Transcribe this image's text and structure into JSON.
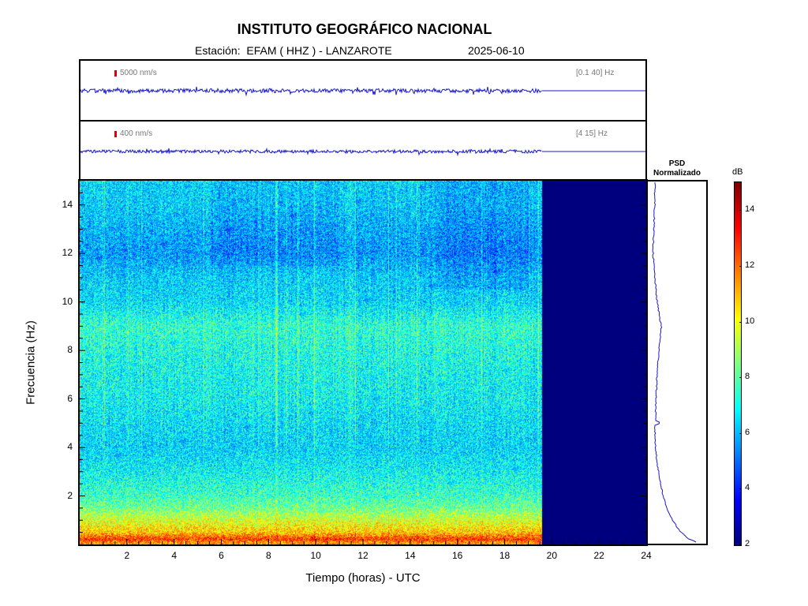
{
  "header": {
    "title": "INSTITUTO GEOGRÁFICO NACIONAL",
    "station": "Estación:  EFAM ( HHZ ) - LANZAROTE",
    "date": "2025-06-10"
  },
  "trace_top": {
    "scale": "5000 nm/s",
    "band": "[0.1 40] Hz"
  },
  "trace_bottom": {
    "scale": "400 nm/s",
    "band": "[4 15] Hz"
  },
  "psd": {
    "title_line1": "PSD",
    "title_line2": "Normalizado"
  },
  "colorbar": {
    "unit": "dB",
    "ticks": [
      2,
      4,
      6,
      8,
      10,
      12,
      14
    ],
    "range": [
      2,
      15
    ],
    "colormap": "jet",
    "no_data_color": "#00007f"
  },
  "axes": {
    "xlabel": "Tiempo (horas) - UTC",
    "ylabel": "Frecuencia  (Hz)"
  },
  "chart_data": {
    "type": "heatmap",
    "title": "INSTITUTO GEOGRÁFICO NACIONAL",
    "xlabel": "Tiempo (horas) - UTC",
    "ylabel": "Frecuencia  (Hz)",
    "xlim": [
      0,
      24
    ],
    "ylim": [
      0,
      15
    ],
    "xticks": [
      2,
      4,
      6,
      8,
      10,
      12,
      14,
      16,
      18,
      20,
      22,
      24
    ],
    "yticks": [
      2,
      4,
      6,
      8,
      10,
      12,
      14
    ],
    "data_end_hour": 19.6,
    "color_range_db": [
      2,
      15
    ],
    "freq_profile": [
      {
        "f": 0.1,
        "db": 11.5
      },
      {
        "f": 0.2,
        "db": 12.8
      },
      {
        "f": 0.5,
        "db": 10.8
      },
      {
        "f": 1.0,
        "db": 9.6
      },
      {
        "f": 1.5,
        "db": 8.3
      },
      {
        "f": 2.0,
        "db": 7.6
      },
      {
        "f": 3.0,
        "db": 6.9
      },
      {
        "f": 4.0,
        "db": 6.4
      },
      {
        "f": 5.0,
        "db": 6.6
      },
      {
        "f": 6.0,
        "db": 6.9
      },
      {
        "f": 7.0,
        "db": 7.0
      },
      {
        "f": 8.0,
        "db": 7.2
      },
      {
        "f": 9.0,
        "db": 7.5
      },
      {
        "f": 10.0,
        "db": 6.5
      },
      {
        "f": 11.0,
        "db": 6.3
      },
      {
        "f": 12.0,
        "db": 5.6
      },
      {
        "f": 13.0,
        "db": 5.9
      },
      {
        "f": 14.0,
        "db": 6.3
      },
      {
        "f": 15.0,
        "db": 6.4
      }
    ],
    "psd_profile": [
      {
        "f": 0.05,
        "v": 0.85
      },
      {
        "f": 0.2,
        "v": 0.7
      },
      {
        "f": 0.5,
        "v": 0.55
      },
      {
        "f": 1.0,
        "v": 0.42
      },
      {
        "f": 1.5,
        "v": 0.32
      },
      {
        "f": 2.0,
        "v": 0.26
      },
      {
        "f": 3.0,
        "v": 0.18
      },
      {
        "f": 4.0,
        "v": 0.13
      },
      {
        "f": 4.9,
        "v": 0.12
      },
      {
        "f": 5.0,
        "v": 0.22
      },
      {
        "f": 5.1,
        "v": 0.13
      },
      {
        "f": 6.0,
        "v": 0.14
      },
      {
        "f": 7.0,
        "v": 0.16
      },
      {
        "f": 8.0,
        "v": 0.19
      },
      {
        "f": 9.0,
        "v": 0.23
      },
      {
        "f": 10.0,
        "v": 0.16
      },
      {
        "f": 11.0,
        "v": 0.12
      },
      {
        "f": 12.0,
        "v": 0.09
      },
      {
        "f": 13.0,
        "v": 0.1
      },
      {
        "f": 14.0,
        "v": 0.12
      },
      {
        "f": 15.0,
        "v": 0.12
      }
    ]
  }
}
